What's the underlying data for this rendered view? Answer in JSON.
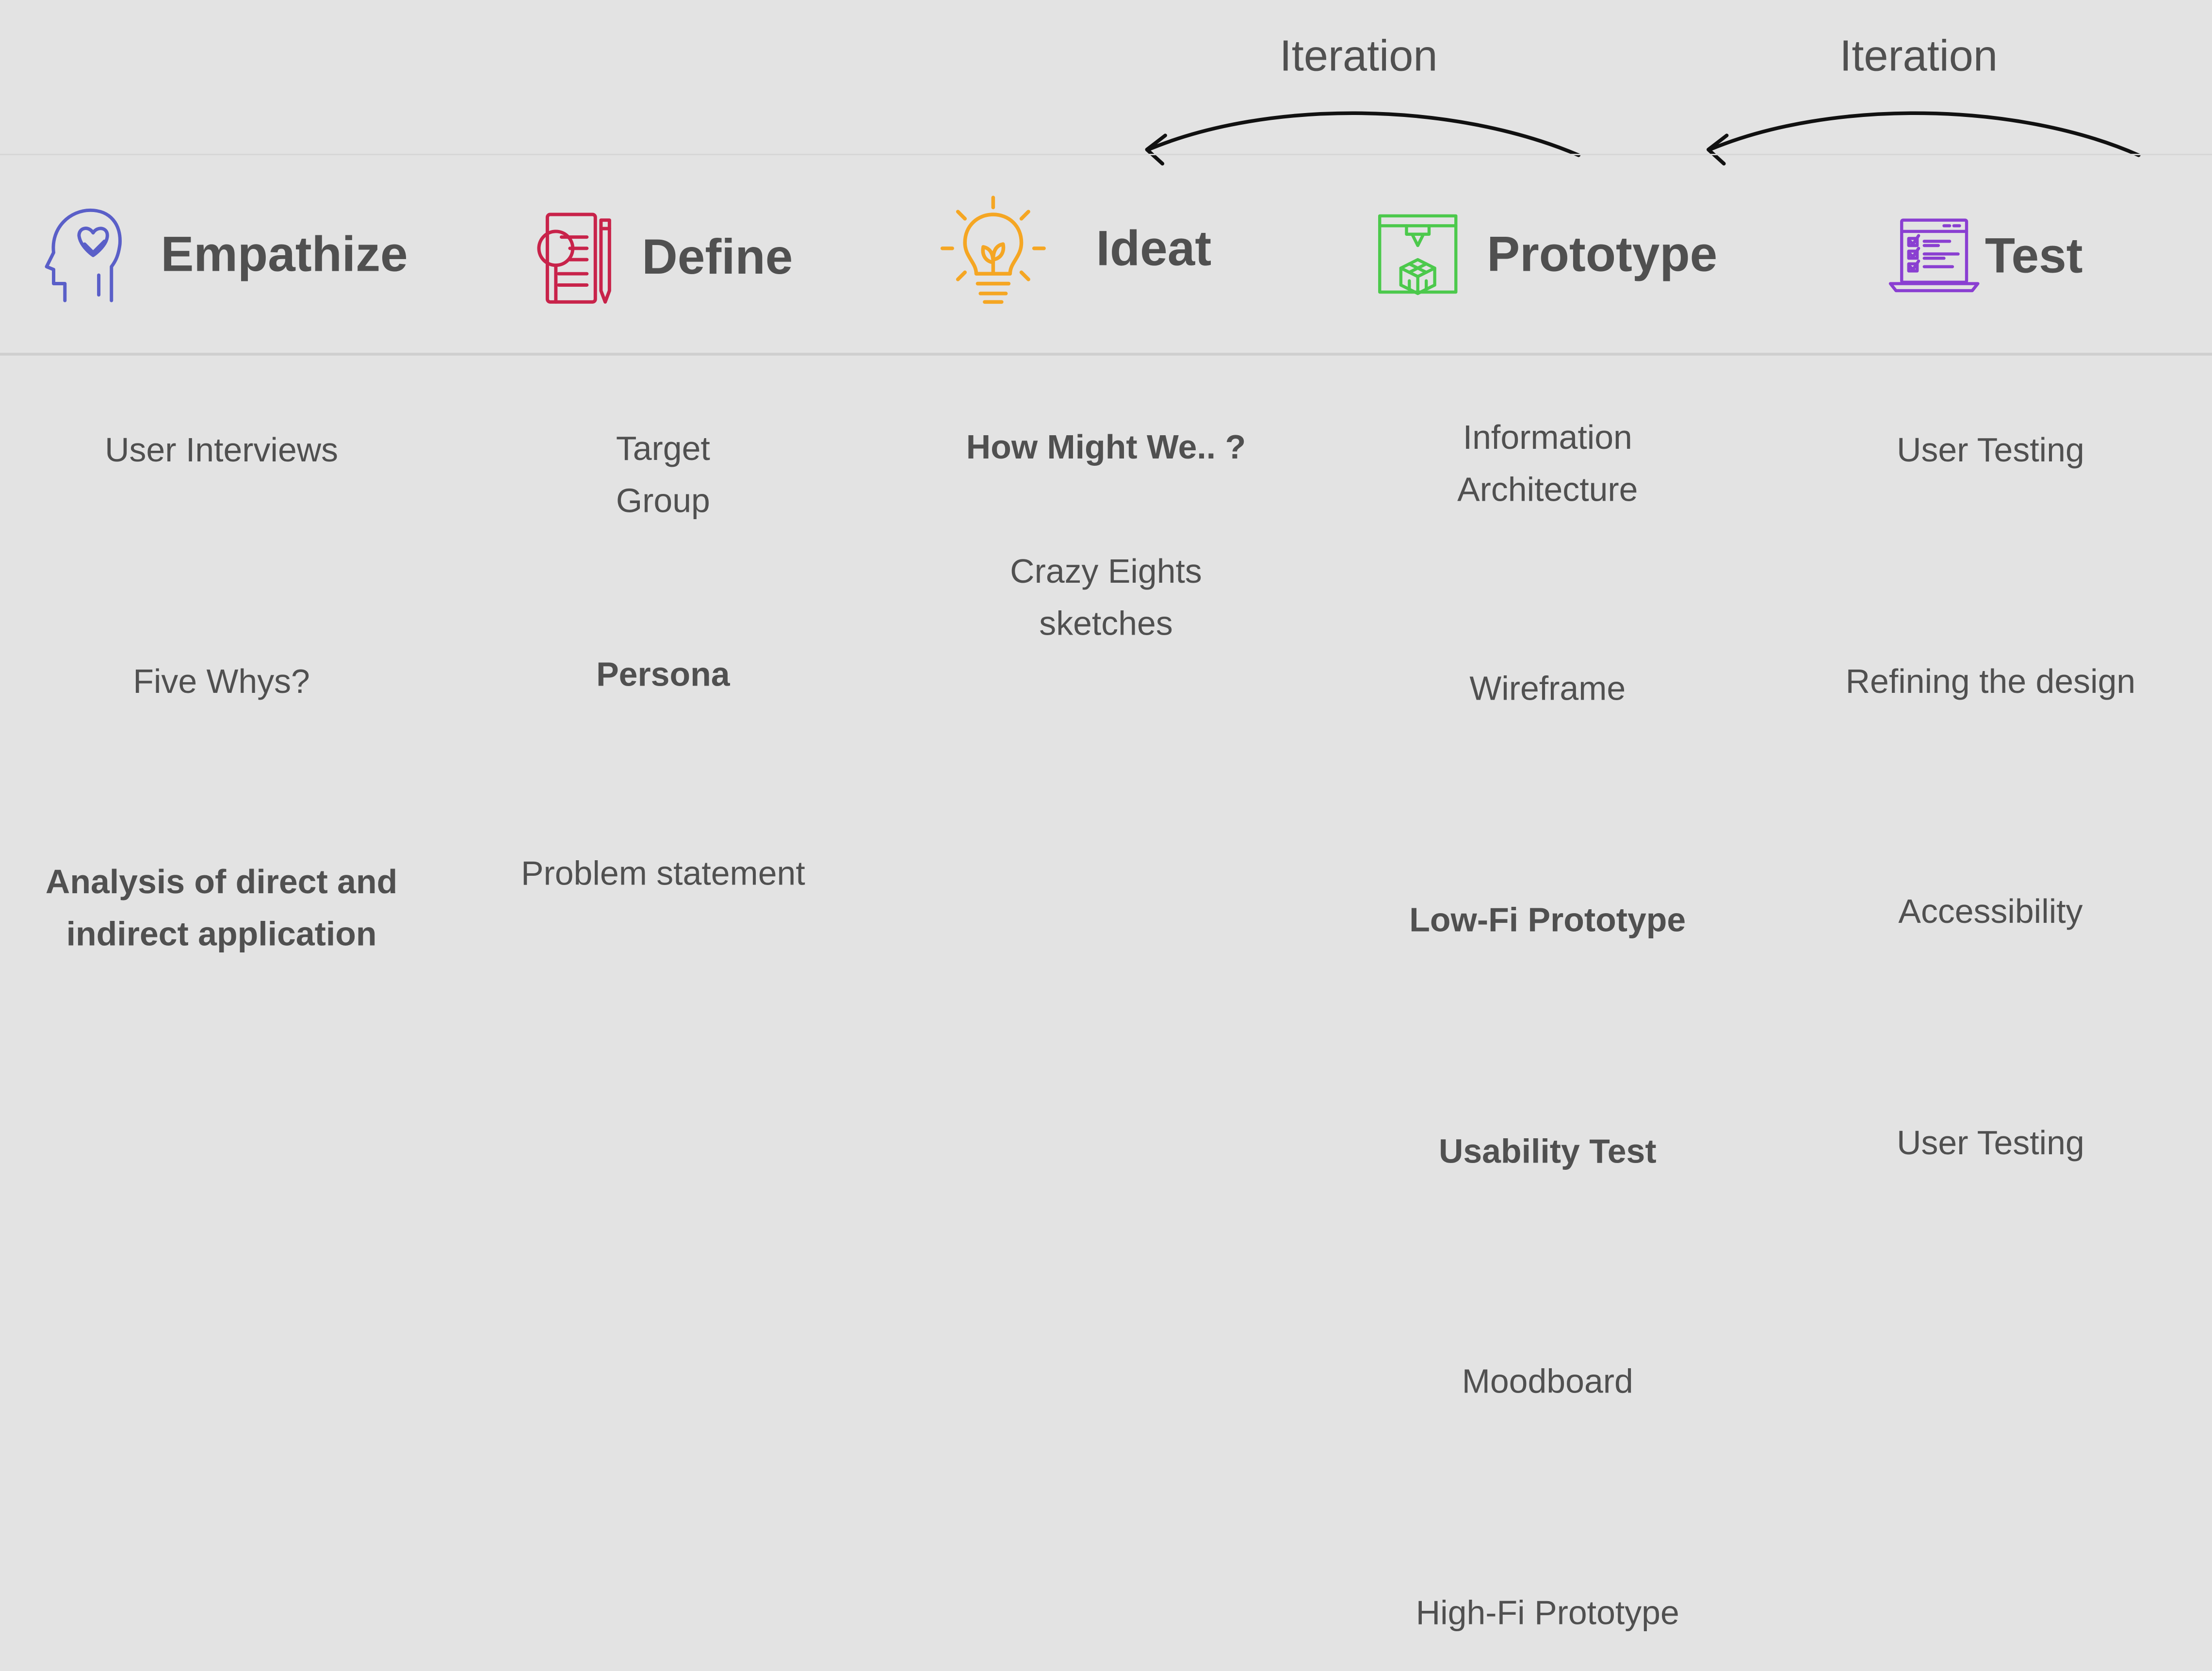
{
  "iterations": [
    "Iteration",
    "Iteration"
  ],
  "phases": [
    {
      "title": "Empathize",
      "icon": "head-heart-handshake-icon",
      "color": "#5a5fc8",
      "items": [
        {
          "text": "User Interviews",
          "bold": false
        },
        {
          "text": "Five Whys?",
          "bold": false
        },
        {
          "text": "Analysis of direct and indirect application",
          "bold": true
        }
      ]
    },
    {
      "title": "Define",
      "icon": "document-magnifier-pencil-icon",
      "color": "#c8234a",
      "items": [
        {
          "text": "Target Group",
          "bold": false
        },
        {
          "text": "Persona",
          "bold": true
        },
        {
          "text": "Problem statement",
          "bold": false
        }
      ]
    },
    {
      "title": "Ideat",
      "icon": "lightbulb-sprout-icon",
      "color": "#f5a623",
      "items": [
        {
          "text": "How Might We.. ?",
          "bold": true
        },
        {
          "text": "Crazy Eights sketches",
          "bold": false
        }
      ]
    },
    {
      "title": "Prototype",
      "icon": "3d-printer-cube-icon",
      "color": "#4cc94c",
      "items": [
        {
          "text": "Information Architecture",
          "bold": false
        },
        {
          "text": "Wireframe",
          "bold": false
        },
        {
          "text": "Low-Fi Prototype",
          "bold": true
        },
        {
          "text": "Usability Test",
          "bold": true
        },
        {
          "text": "Moodboard",
          "bold": false
        },
        {
          "text": "High-Fi Prototype",
          "bold": false
        }
      ]
    },
    {
      "title": "Test",
      "icon": "laptop-checklist-icon",
      "color": "#8a3fd1",
      "items": [
        {
          "text": "User Testing",
          "bold": false
        },
        {
          "text": "Refining the design",
          "bold": false
        },
        {
          "text": "Accessibility",
          "bold": false
        },
        {
          "text": "User Testing",
          "bold": false
        }
      ]
    }
  ]
}
